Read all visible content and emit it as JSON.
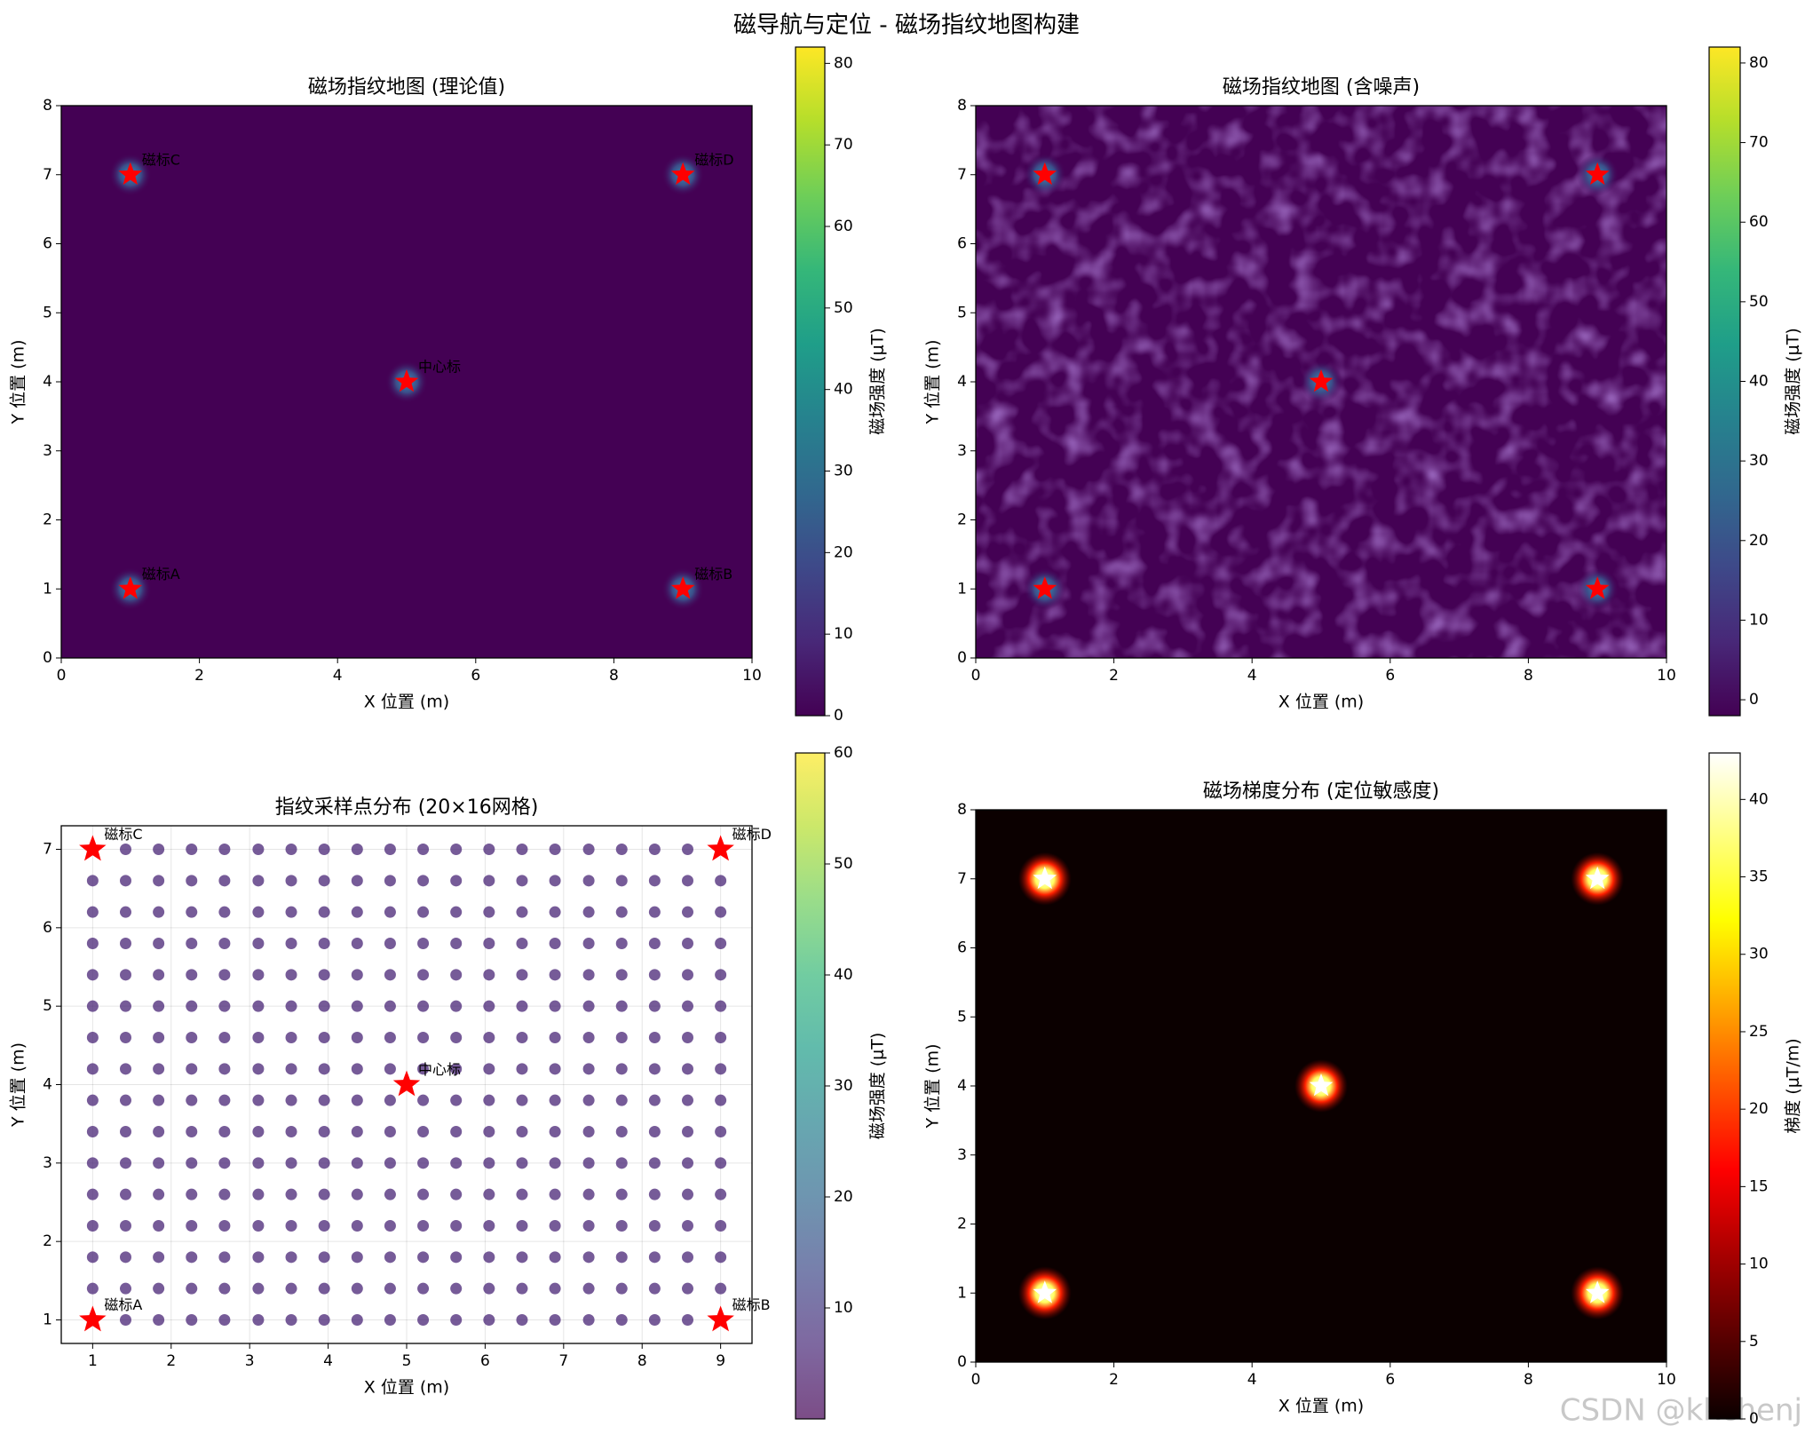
{
  "figure_title": "磁导航与定位 - 磁场指纹地图构建",
  "watermark": "CSDN @kkchenj",
  "chart_data": [
    {
      "type": "heatmap",
      "title": "磁场指纹地图 (理论值)",
      "xlabel": "X 位置 (m)",
      "ylabel": "Y 位置 (m)",
      "xlim": [
        0,
        10
      ],
      "ylim": [
        0,
        8
      ],
      "xticks": [
        0,
        2,
        4,
        6,
        8,
        10
      ],
      "yticks": [
        0,
        1,
        2,
        3,
        4,
        5,
        6,
        7,
        8
      ],
      "colorbar": {
        "label": "磁场强度 (μT)",
        "colormap": "viridis",
        "lim": [
          0,
          82
        ],
        "ticks": [
          0,
          10,
          20,
          30,
          40,
          50,
          60,
          70,
          80
        ]
      },
      "markers": {
        "x": [
          1,
          9,
          1,
          9,
          5
        ],
        "y": [
          1,
          1,
          7,
          7,
          4
        ],
        "labels": [
          "磁标A",
          "磁标B",
          "磁标C",
          "磁标D",
          "中心标"
        ],
        "color": "#ff0000",
        "label_color": "#ffffff"
      }
    },
    {
      "type": "heatmap",
      "title": "磁场指纹地图 (含噪声)",
      "xlabel": "X 位置 (m)",
      "ylabel": "Y 位置 (m)",
      "noise": true,
      "xlim": [
        0,
        10
      ],
      "ylim": [
        0,
        8
      ],
      "xticks": [
        0,
        2,
        4,
        6,
        8,
        10
      ],
      "yticks": [
        0,
        1,
        2,
        3,
        4,
        5,
        6,
        7,
        8
      ],
      "colorbar": {
        "label": "磁场强度 (μT)",
        "colormap": "viridis",
        "lim": [
          -2,
          82
        ],
        "ticks": [
          0,
          10,
          20,
          30,
          40,
          50,
          60,
          70,
          80
        ]
      },
      "markers": {
        "x": [
          1,
          9,
          1,
          9,
          5
        ],
        "y": [
          1,
          1,
          7,
          7,
          4
        ],
        "color": "#ff0000"
      }
    },
    {
      "type": "scatter",
      "title": "指纹采样点分布 (20×16网格)",
      "xlabel": "X 位置 (m)",
      "ylabel": "Y 位置 (m)",
      "grid": true,
      "xlim": [
        0.6,
        9.4
      ],
      "ylim": [
        0.7,
        7.3
      ],
      "xticks": [
        1,
        2,
        3,
        4,
        5,
        6,
        7,
        8,
        9
      ],
      "yticks": [
        1,
        2,
        3,
        4,
        5,
        6,
        7
      ],
      "grid_x": [
        1,
        1.42,
        1.84,
        2.26,
        2.68,
        3.11,
        3.53,
        3.95,
        4.37,
        4.79,
        5.21,
        5.63,
        6.05,
        6.47,
        6.89,
        7.32,
        7.74,
        8.16,
        8.58,
        9
      ],
      "grid_y": [
        1,
        1.4,
        1.8,
        2.2,
        2.6,
        3,
        3.4,
        3.8,
        4.2,
        4.6,
        5,
        5.4,
        5.8,
        6.2,
        6.6,
        7
      ],
      "point_color": "#482475",
      "colorbar": {
        "label": "磁场强度 (μT)",
        "colormap": "viridis",
        "alpha": 0.7,
        "lim": [
          0,
          60
        ],
        "ticks": [
          10,
          20,
          30,
          40,
          50,
          60
        ]
      },
      "markers": {
        "x": [
          1,
          9,
          1,
          9,
          5
        ],
        "y": [
          1,
          1,
          7,
          7,
          4
        ],
        "labels": [
          "磁标A",
          "磁标B",
          "磁标C",
          "磁标D",
          "中心标"
        ],
        "color": "#ff0000",
        "label_color": "#000000"
      }
    },
    {
      "type": "heatmap",
      "title": "磁场梯度分布 (定位敏感度)",
      "xlabel": "X 位置 (m)",
      "ylabel": "Y 位置 (m)",
      "xlim": [
        0,
        10
      ],
      "ylim": [
        0,
        8
      ],
      "xticks": [
        0,
        2,
        4,
        6,
        8,
        10
      ],
      "yticks": [
        0,
        1,
        2,
        3,
        4,
        5,
        6,
        7,
        8
      ],
      "colorbar": {
        "label": "梯度 (μT/m)",
        "colormap": "hot",
        "lim": [
          0,
          43
        ],
        "ticks": [
          0,
          5,
          10,
          15,
          20,
          25,
          30,
          35,
          40
        ]
      },
      "markers": {
        "x": [
          1,
          9,
          1,
          9,
          5
        ],
        "y": [
          1,
          1,
          7,
          7,
          4
        ],
        "color": "#ffffff"
      }
    }
  ]
}
